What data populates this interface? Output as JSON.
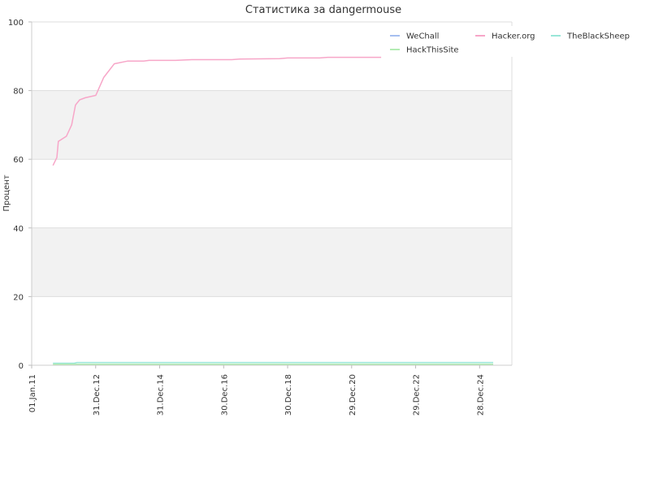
{
  "chart_data": {
    "type": "line",
    "title": "Статистика за dangermouse",
    "xlabel": "",
    "ylabel": "Процент",
    "xlim": [
      "2011-01-01",
      "2025-12-31"
    ],
    "ylim": [
      0,
      100
    ],
    "y_ticks": [
      0,
      20,
      40,
      60,
      80,
      100
    ],
    "x_ticks": [
      "01.Jan.11",
      "31.Dec.12",
      "31.Dec.14",
      "30.Dec.16",
      "30.Dec.18",
      "29.Dec.20",
      "29.Dec.22",
      "28.Dec.24"
    ],
    "grid": "horizontal bands",
    "band_color": "#f2f2f2",
    "legend_position": "top-right",
    "series": [
      {
        "name": "WeChall",
        "color": "#a6bff0",
        "points": []
      },
      {
        "name": "Hacker.org",
        "color": "#f7a6c8",
        "points": [
          [
            "2011-09-01",
            58.2
          ],
          [
            "2011-10-15",
            60.5
          ],
          [
            "2011-11-01",
            65.2
          ],
          [
            "2012-02-01",
            66.7
          ],
          [
            "2012-04-01",
            70.0
          ],
          [
            "2012-05-15",
            75.8
          ],
          [
            "2012-07-01",
            77.3
          ],
          [
            "2012-09-01",
            77.9
          ],
          [
            "2013-01-01",
            78.6
          ],
          [
            "2013-04-01",
            83.8
          ],
          [
            "2013-08-01",
            87.8
          ],
          [
            "2014-01-01",
            88.6
          ],
          [
            "2014-07-01",
            88.6
          ],
          [
            "2014-09-01",
            88.8
          ],
          [
            "2015-07-01",
            88.8
          ],
          [
            "2016-01-01",
            89.0
          ],
          [
            "2017-04-01",
            89.0
          ],
          [
            "2017-07-01",
            89.2
          ],
          [
            "2018-10-01",
            89.3
          ],
          [
            "2019-01-01",
            89.5
          ],
          [
            "2020-01-01",
            89.5
          ],
          [
            "2020-04-01",
            89.7
          ],
          [
            "2021-12-01",
            89.7
          ]
        ]
      },
      {
        "name": "TheBlackSheep",
        "color": "#99e6d8",
        "points": [
          [
            "2011-09-01",
            0.6
          ],
          [
            "2012-05-01",
            0.6
          ],
          [
            "2012-06-01",
            0.8
          ],
          [
            "2025-06-01",
            0.8
          ]
        ]
      },
      {
        "name": "HackThisSite",
        "color": "#b3ecb3",
        "points": [
          [
            "2011-09-01",
            0.3
          ],
          [
            "2025-06-01",
            0.3
          ]
        ]
      }
    ]
  }
}
